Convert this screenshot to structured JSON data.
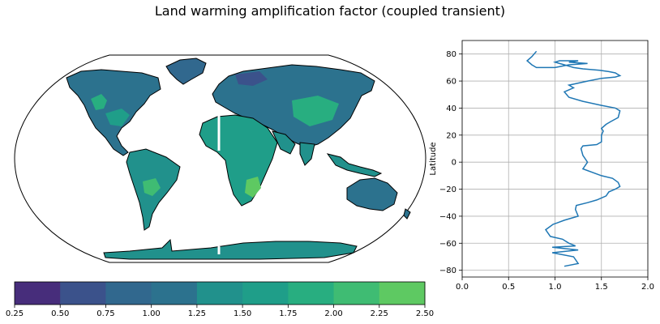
{
  "title": "Land warming amplification factor (coupled transient)",
  "chart_data": [
    {
      "type": "heatmap",
      "title": "",
      "projection": "Robinson (world map, land only)",
      "colorbar": {
        "ticks": [
          "0.25",
          "0.50",
          "0.75",
          "1.00",
          "1.25",
          "1.50",
          "1.75",
          "2.00",
          "2.25",
          "2.50"
        ],
        "levels": [
          0.25,
          0.5,
          0.75,
          1.0,
          1.25,
          1.5,
          1.75,
          2.0,
          2.25,
          2.5
        ],
        "colors": [
          "#472d7b",
          "#3b528b",
          "#31688e",
          "#2c728e",
          "#21918c",
          "#1f9e89",
          "#28ae80",
          "#3fbc73",
          "#5ec962",
          "#7ad151"
        ],
        "placement": "bottom"
      }
    },
    {
      "type": "line",
      "xlabel": "",
      "ylabel": "Latitude",
      "xlim": [
        0.0,
        2.0
      ],
      "ylim": [
        -85,
        90
      ],
      "xticks": [
        "0.0",
        "0.5",
        "1.0",
        "1.5",
        "2.0"
      ],
      "yticks": [
        "80",
        "60",
        "40",
        "20",
        "0",
        "−20",
        "−40",
        "−60",
        "−80"
      ],
      "grid": true,
      "line_color": "#1f77b4",
      "series": [
        {
          "x": [
            1.1,
            1.25,
            1.2,
            0.97,
            1.25,
            0.97,
            1.22,
            1.15,
            1.08,
            0.95,
            0.92,
            0.9,
            0.98,
            1.02,
            1.1,
            1.25,
            1.22,
            1.23,
            1.35,
            1.45,
            1.55,
            1.58,
            1.65,
            1.7,
            1.68,
            1.62,
            1.5,
            1.3,
            1.35,
            1.3,
            1.28,
            1.3,
            1.45,
            1.5,
            1.5,
            1.52,
            1.5,
            1.55,
            1.6,
            1.68,
            1.7,
            1.65,
            1.5,
            1.3,
            1.15,
            1.1,
            1.2,
            1.15,
            1.35,
            1.5,
            1.65,
            1.7,
            1.65,
            1.58,
            1.48,
            1.3,
            1.2,
            1.15,
            1.1,
            1.05,
            1.0,
            1.05,
            1.25,
            1.15,
            1.35,
            1.15,
            1.0,
            0.8,
            0.75,
            0.7,
            0.75,
            0.8
          ],
          "y": [
            -77,
            -75,
            -70,
            -67,
            -65,
            -63,
            -62,
            -60,
            -57,
            -55,
            -52,
            -50,
            -46,
            -45,
            -43,
            -40,
            -35,
            -32,
            -30,
            -28,
            -25,
            -22,
            -20,
            -18,
            -15,
            -12,
            -10,
            -5,
            0,
            5,
            10,
            12,
            13,
            15,
            20,
            23,
            25,
            28,
            30,
            33,
            38,
            40,
            42,
            45,
            48,
            52,
            55,
            57,
            60,
            62,
            63,
            64,
            66,
            67,
            68,
            69,
            70,
            71,
            72,
            73,
            74,
            75,
            75,
            74,
            73,
            72,
            70,
            70,
            72,
            75,
            78,
            82
          ]
        }
      ]
    }
  ]
}
